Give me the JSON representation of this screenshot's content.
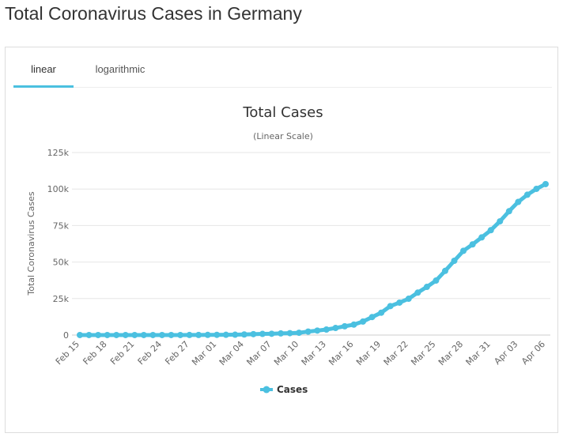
{
  "page_title": "Total Coronavirus Cases in Germany",
  "tabs": [
    {
      "label": "linear",
      "active": true
    },
    {
      "label": "logarithmic",
      "active": false
    }
  ],
  "colors": {
    "series": "#4bc0e0",
    "tab_underline": "#4bc0e0"
  },
  "chart_data": {
    "type": "line",
    "title": "Total Cases",
    "subtitle": "(Linear Scale)",
    "ylabel": "Total Coronavirus Cases",
    "xlabel": "",
    "ylim": [
      0,
      125000
    ],
    "yticks": [
      0,
      25000,
      50000,
      75000,
      100000,
      125000
    ],
    "ytick_labels": [
      "0",
      "25k",
      "50k",
      "75k",
      "100k",
      "125k"
    ],
    "x_tick_labels": [
      "Feb 15",
      "Feb 18",
      "Feb 21",
      "Feb 24",
      "Feb 27",
      "Mar 01",
      "Mar 04",
      "Mar 07",
      "Mar 10",
      "Mar 13",
      "Mar 16",
      "Mar 19",
      "Mar 22",
      "Mar 25",
      "Mar 28",
      "Mar 31",
      "Apr 03",
      "Apr 06"
    ],
    "grid": true,
    "legend_position": "bottom-center",
    "x": [
      "Feb 15",
      "Feb 16",
      "Feb 17",
      "Feb 18",
      "Feb 19",
      "Feb 20",
      "Feb 21",
      "Feb 22",
      "Feb 23",
      "Feb 24",
      "Feb 25",
      "Feb 26",
      "Feb 27",
      "Feb 28",
      "Feb 29",
      "Mar 01",
      "Mar 02",
      "Mar 03",
      "Mar 04",
      "Mar 05",
      "Mar 06",
      "Mar 07",
      "Mar 08",
      "Mar 09",
      "Mar 10",
      "Mar 11",
      "Mar 12",
      "Mar 13",
      "Mar 14",
      "Mar 15",
      "Mar 16",
      "Mar 17",
      "Mar 18",
      "Mar 19",
      "Mar 20",
      "Mar 21",
      "Mar 22",
      "Mar 23",
      "Mar 24",
      "Mar 25",
      "Mar 26",
      "Mar 27",
      "Mar 28",
      "Mar 29",
      "Mar 30",
      "Mar 31",
      "Apr 01",
      "Apr 02",
      "Apr 03",
      "Apr 04",
      "Apr 05",
      "Apr 06"
    ],
    "series": [
      {
        "name": "Cases",
        "values": [
          16,
          16,
          16,
          16,
          16,
          16,
          16,
          16,
          16,
          18,
          21,
          26,
          53,
          66,
          117,
          150,
          188,
          240,
          400,
          639,
          795,
          902,
          1139,
          1296,
          1567,
          2369,
          3062,
          3795,
          4838,
          6012,
          7156,
          9257,
          12327,
          15320,
          19848,
          22213,
          24873,
          29056,
          32986,
          37323,
          43938,
          50871,
          57695,
          62095,
          66885,
          71808,
          77872,
          84794,
          91159,
          96092,
          100123,
          103375
        ]
      }
    ]
  }
}
